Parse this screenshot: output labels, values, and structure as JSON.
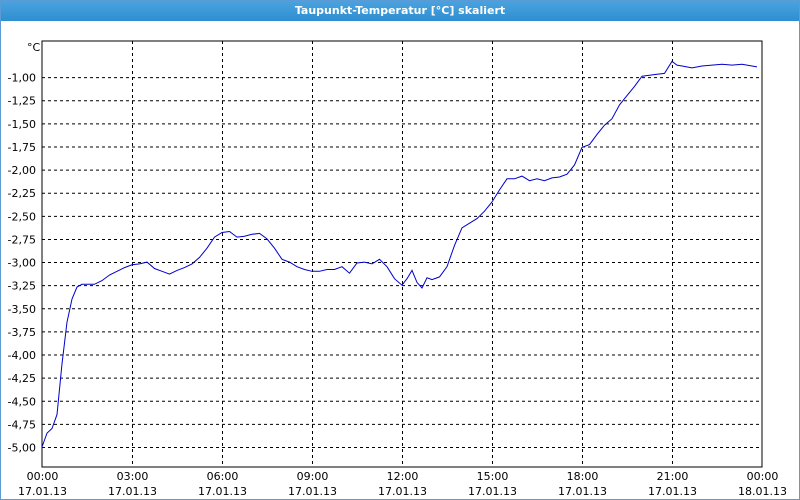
{
  "window": {
    "title": "Taupunkt-Temperatur [°C] skaliert"
  },
  "chart_data": {
    "type": "line",
    "title": "Taupunkt-Temperatur [°C] skaliert",
    "unit_label": "°C",
    "xlabel": "",
    "ylabel": "",
    "ylim": [
      -5.0,
      -0.75
    ],
    "xlim_hours": [
      0,
      24
    ],
    "y_ticks": [
      "-1,00",
      "-1,25",
      "-1,50",
      "-1,75",
      "-2,00",
      "-2,25",
      "-2,50",
      "-2,75",
      "-3,00",
      "-3,25",
      "-3,50",
      "-3,75",
      "-4,00",
      "-4,25",
      "-4,50",
      "-4,75",
      "-5,00"
    ],
    "x_ticks": [
      {
        "time": "00:00",
        "date": "17.01.13"
      },
      {
        "time": "03:00",
        "date": "17.01.13"
      },
      {
        "time": "06:00",
        "date": "17.01.13"
      },
      {
        "time": "09:00",
        "date": "17.01.13"
      },
      {
        "time": "12:00",
        "date": "17.01.13"
      },
      {
        "time": "15:00",
        "date": "17.01.13"
      },
      {
        "time": "18:00",
        "date": "17.01.13"
      },
      {
        "time": "21:00",
        "date": "17.01.13"
      },
      {
        "time": "00:00",
        "date": "18.01.13"
      }
    ],
    "grid": true,
    "line_color": "#0000cc",
    "series": [
      {
        "x_time": [
          "00:00",
          "00:10",
          "00:20",
          "00:30",
          "00:40",
          "00:50",
          "01:00",
          "01:10",
          "01:20",
          "01:30",
          "01:45",
          "02:00",
          "02:15",
          "02:30",
          "02:45",
          "03:00",
          "03:15",
          "03:30",
          "03:45",
          "04:00",
          "04:15",
          "04:30",
          "04:45",
          "05:00",
          "05:15",
          "05:30",
          "05:45",
          "06:00",
          "06:15",
          "06:30",
          "06:45",
          "07:00",
          "07:15",
          "07:30",
          "07:45",
          "08:00",
          "08:15",
          "08:30",
          "08:45",
          "09:00",
          "09:15",
          "09:30",
          "09:45",
          "10:00",
          "10:15",
          "10:30",
          "10:45",
          "11:00",
          "11:15",
          "11:30",
          "11:45",
          "12:00",
          "12:10",
          "12:20",
          "12:30",
          "12:40",
          "12:50",
          "13:00",
          "13:15",
          "13:30",
          "13:45",
          "14:00",
          "14:15",
          "14:30",
          "14:45",
          "15:00",
          "15:15",
          "15:30",
          "15:45",
          "16:00",
          "16:15",
          "16:30",
          "16:45",
          "17:00",
          "17:15",
          "17:30",
          "17:45",
          "18:00",
          "18:15",
          "18:30",
          "18:45",
          "19:00",
          "19:15",
          "19:30",
          "19:45",
          "20:00",
          "20:15",
          "20:30",
          "20:45",
          "21:00",
          "21:10",
          "21:20",
          "21:40",
          "22:00",
          "22:20",
          "22:40",
          "23:00",
          "23:20",
          "23:40",
          "23:50"
        ],
        "values": [
          -5.0,
          -4.85,
          -4.8,
          -4.65,
          -4.1,
          -3.65,
          -3.4,
          -3.27,
          -3.24,
          -3.24,
          -3.24,
          -3.2,
          -3.14,
          -3.1,
          -3.06,
          -3.03,
          -3.02,
          -3.0,
          -3.07,
          -3.1,
          -3.13,
          -3.09,
          -3.06,
          -3.02,
          -2.95,
          -2.85,
          -2.73,
          -2.68,
          -2.67,
          -2.73,
          -2.72,
          -2.7,
          -2.69,
          -2.75,
          -2.85,
          -2.97,
          -3.0,
          -3.05,
          -3.08,
          -3.1,
          -3.1,
          -3.08,
          -3.08,
          -3.05,
          -3.12,
          -3.01,
          -3.0,
          -3.02,
          -2.97,
          -3.05,
          -3.18,
          -3.25,
          -3.18,
          -3.09,
          -3.22,
          -3.28,
          -3.17,
          -3.19,
          -3.16,
          -3.05,
          -2.82,
          -2.63,
          -2.58,
          -2.53,
          -2.45,
          -2.35,
          -2.22,
          -2.1,
          -2.1,
          -2.07,
          -2.12,
          -2.1,
          -2.12,
          -2.09,
          -2.08,
          -2.05,
          -1.95,
          -1.76,
          -1.73,
          -1.62,
          -1.52,
          -1.45,
          -1.3,
          -1.2,
          -1.1,
          -0.99,
          -0.98,
          -0.97,
          -0.96,
          -0.83,
          -0.87,
          -0.88,
          -0.9,
          -0.88,
          -0.87,
          -0.86,
          -0.87,
          -0.86,
          -0.88,
          -0.89
        ]
      }
    ]
  }
}
